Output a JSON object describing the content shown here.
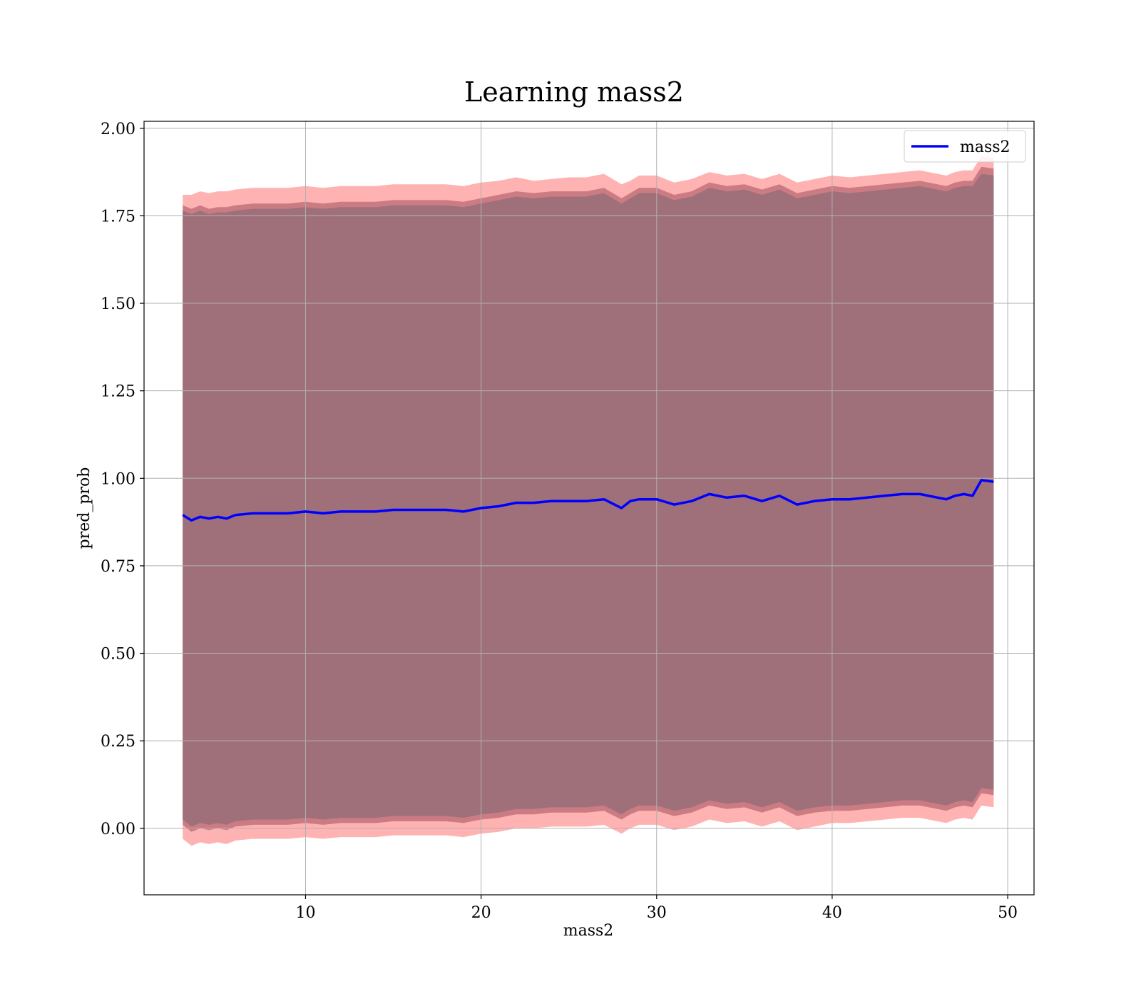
{
  "chart_data": {
    "type": "line",
    "title": "Learning mass2",
    "xlabel": "mass2",
    "ylabel": "pred_prob",
    "xlim": [
      0.8,
      51.5
    ],
    "ylim": [
      -0.19,
      2.02
    ],
    "x_ticks": [
      10,
      20,
      30,
      40,
      50
    ],
    "y_ticks": [
      0.0,
      0.25,
      0.5,
      0.75,
      1.0,
      1.25,
      1.5,
      1.75,
      2.0
    ],
    "x_tick_labels": [
      "10",
      "20",
      "30",
      "40",
      "50"
    ],
    "y_tick_labels": [
      "0.00",
      "0.25",
      "0.50",
      "0.75",
      "1.00",
      "1.25",
      "1.50",
      "1.75",
      "2.00"
    ],
    "grid": true,
    "legend": {
      "position": "top-right",
      "entries": [
        "mass2"
      ]
    },
    "colors": {
      "line": "#0000ff",
      "band_outer": "#ff0000",
      "band_inner": "#8b3a4a",
      "band_core": "#a0707a"
    },
    "series": [
      {
        "name": "mass2",
        "x": [
          3.0,
          3.5,
          4.0,
          4.5,
          5.0,
          5.5,
          6.0,
          7.0,
          8.0,
          9.0,
          10.0,
          11.0,
          12.0,
          13.0,
          14.0,
          15.0,
          16.0,
          17.0,
          18.0,
          19.0,
          20.0,
          21.0,
          22.0,
          23.0,
          24.0,
          25.0,
          26.0,
          27.0,
          28.0,
          28.5,
          29.0,
          30.0,
          31.0,
          32.0,
          33.0,
          34.0,
          35.0,
          36.0,
          37.0,
          38.0,
          39.0,
          40.0,
          41.0,
          42.0,
          43.0,
          44.0,
          45.0,
          46.0,
          46.5,
          47.0,
          47.5,
          48.0,
          48.5,
          49.2
        ],
        "y": [
          0.895,
          0.88,
          0.89,
          0.885,
          0.89,
          0.885,
          0.895,
          0.9,
          0.9,
          0.9,
          0.905,
          0.9,
          0.905,
          0.905,
          0.905,
          0.91,
          0.91,
          0.91,
          0.91,
          0.905,
          0.915,
          0.92,
          0.93,
          0.93,
          0.935,
          0.935,
          0.935,
          0.94,
          0.915,
          0.935,
          0.94,
          0.94,
          0.925,
          0.935,
          0.955,
          0.945,
          0.95,
          0.935,
          0.95,
          0.925,
          0.935,
          0.94,
          0.94,
          0.945,
          0.95,
          0.955,
          0.955,
          0.945,
          0.94,
          0.95,
          0.955,
          0.95,
          0.995,
          0.99
        ]
      }
    ],
    "band_outer_upper": [
      1.81,
      1.81,
      1.82,
      1.815,
      1.82,
      1.82,
      1.825,
      1.83,
      1.83,
      1.83,
      1.835,
      1.83,
      1.835,
      1.835,
      1.835,
      1.84,
      1.84,
      1.84,
      1.84,
      1.835,
      1.845,
      1.85,
      1.86,
      1.85,
      1.855,
      1.86,
      1.86,
      1.87,
      1.84,
      1.85,
      1.865,
      1.865,
      1.845,
      1.855,
      1.875,
      1.865,
      1.87,
      1.855,
      1.87,
      1.845,
      1.855,
      1.865,
      1.86,
      1.865,
      1.87,
      1.875,
      1.88,
      1.87,
      1.865,
      1.875,
      1.88,
      1.88,
      1.92,
      1.915
    ],
    "band_inner_upper": [
      1.78,
      1.77,
      1.78,
      1.77,
      1.775,
      1.775,
      1.78,
      1.785,
      1.785,
      1.785,
      1.79,
      1.785,
      1.79,
      1.79,
      1.79,
      1.795,
      1.795,
      1.795,
      1.795,
      1.79,
      1.8,
      1.81,
      1.82,
      1.815,
      1.82,
      1.82,
      1.82,
      1.83,
      1.8,
      1.815,
      1.83,
      1.83,
      1.81,
      1.82,
      1.845,
      1.835,
      1.84,
      1.825,
      1.84,
      1.815,
      1.825,
      1.835,
      1.83,
      1.835,
      1.84,
      1.845,
      1.85,
      1.84,
      1.835,
      1.845,
      1.85,
      1.85,
      1.89,
      1.885
    ],
    "band_core_upper": [
      1.765,
      1.755,
      1.765,
      1.755,
      1.76,
      1.76,
      1.765,
      1.77,
      1.77,
      1.77,
      1.775,
      1.77,
      1.775,
      1.775,
      1.775,
      1.78,
      1.78,
      1.78,
      1.78,
      1.775,
      1.785,
      1.795,
      1.805,
      1.8,
      1.805,
      1.805,
      1.805,
      1.815,
      1.785,
      1.8,
      1.815,
      1.815,
      1.795,
      1.805,
      1.83,
      1.82,
      1.825,
      1.81,
      1.825,
      1.8,
      1.81,
      1.82,
      1.815,
      1.82,
      1.825,
      1.83,
      1.835,
      1.825,
      1.82,
      1.83,
      1.835,
      1.835,
      1.87,
      1.865
    ],
    "band_core_lower": [
      0.025,
      0.005,
      0.015,
      0.01,
      0.015,
      0.01,
      0.02,
      0.025,
      0.025,
      0.025,
      0.03,
      0.025,
      0.03,
      0.03,
      0.03,
      0.035,
      0.035,
      0.035,
      0.035,
      0.03,
      0.04,
      0.045,
      0.055,
      0.055,
      0.06,
      0.06,
      0.06,
      0.065,
      0.04,
      0.055,
      0.065,
      0.065,
      0.05,
      0.06,
      0.08,
      0.07,
      0.075,
      0.06,
      0.075,
      0.05,
      0.06,
      0.065,
      0.065,
      0.07,
      0.075,
      0.08,
      0.08,
      0.07,
      0.065,
      0.075,
      0.08,
      0.075,
      0.115,
      0.11
    ],
    "band_inner_lower": [
      0.01,
      -0.01,
      0.0,
      -0.005,
      0.0,
      -0.005,
      0.005,
      0.01,
      0.01,
      0.01,
      0.015,
      0.01,
      0.015,
      0.015,
      0.015,
      0.02,
      0.02,
      0.02,
      0.02,
      0.015,
      0.025,
      0.03,
      0.04,
      0.04,
      0.045,
      0.045,
      0.045,
      0.05,
      0.025,
      0.04,
      0.05,
      0.05,
      0.035,
      0.045,
      0.065,
      0.055,
      0.06,
      0.045,
      0.06,
      0.035,
      0.045,
      0.05,
      0.05,
      0.055,
      0.06,
      0.065,
      0.065,
      0.055,
      0.05,
      0.06,
      0.065,
      0.06,
      0.1,
      0.095
    ],
    "band_outer_lower": [
      -0.03,
      -0.05,
      -0.04,
      -0.045,
      -0.04,
      -0.045,
      -0.035,
      -0.03,
      -0.03,
      -0.03,
      -0.025,
      -0.03,
      -0.025,
      -0.025,
      -0.025,
      -0.02,
      -0.02,
      -0.02,
      -0.02,
      -0.025,
      -0.015,
      -0.01,
      0.0,
      0.0,
      0.005,
      0.005,
      0.005,
      0.01,
      -0.015,
      0.0,
      0.01,
      0.01,
      -0.005,
      0.005,
      0.025,
      0.015,
      0.02,
      0.005,
      0.02,
      -0.005,
      0.005,
      0.015,
      0.015,
      0.02,
      0.025,
      0.03,
      0.03,
      0.02,
      0.015,
      0.025,
      0.03,
      0.025,
      0.065,
      0.06
    ]
  }
}
